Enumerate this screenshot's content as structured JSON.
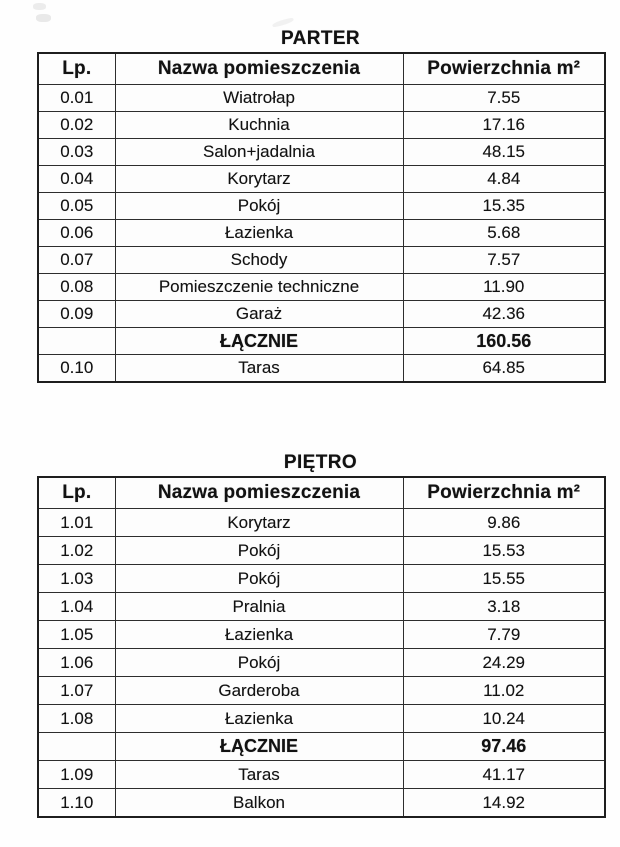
{
  "colors": {
    "text": "#121212",
    "border": "#2d2d2d",
    "background": "#fefefe"
  },
  "sections": [
    {
      "title": "PARTER",
      "columns": [
        "Lp.",
        "Nazwa pomieszczenia",
        "Powierzchnia m²"
      ],
      "rows": [
        {
          "lp": "0.01",
          "name": "Wiatrołap",
          "area": "7.55"
        },
        {
          "lp": "0.02",
          "name": "Kuchnia",
          "area": "17.16"
        },
        {
          "lp": "0.03",
          "name": "Salon+jadalnia",
          "area": "48.15"
        },
        {
          "lp": "0.04",
          "name": "Korytarz",
          "area": "4.84"
        },
        {
          "lp": "0.05",
          "name": "Pokój",
          "area": "15.35"
        },
        {
          "lp": "0.06",
          "name": "Łazienka",
          "area": "5.68"
        },
        {
          "lp": "0.07",
          "name": "Schody",
          "area": "7.57"
        },
        {
          "lp": "0.08",
          "name": "Pomieszczenie techniczne",
          "area": "11.90"
        },
        {
          "lp": "0.09",
          "name": "Garaż",
          "area": "42.36"
        },
        {
          "lp": "",
          "name": "ŁĄCZNIE",
          "area": "160.56",
          "bold": true
        },
        {
          "lp": "0.10",
          "name": "Taras",
          "area": "64.85"
        }
      ]
    },
    {
      "title": "PIĘTRO",
      "columns": [
        "Lp.",
        "Nazwa pomieszczenia",
        "Powierzchnia m²"
      ],
      "rows": [
        {
          "lp": "1.01",
          "name": "Korytarz",
          "area": "9.86"
        },
        {
          "lp": "1.02",
          "name": "Pokój",
          "area": "15.53"
        },
        {
          "lp": "1.03",
          "name": "Pokój",
          "area": "15.55"
        },
        {
          "lp": "1.04",
          "name": "Pralnia",
          "area": "3.18"
        },
        {
          "lp": "1.05",
          "name": "Łazienka",
          "area": "7.79"
        },
        {
          "lp": "1.06",
          "name": "Pokój",
          "area": "24.29"
        },
        {
          "lp": "1.07",
          "name": "Garderoba",
          "area": "11.02"
        },
        {
          "lp": "1.08",
          "name": "Łazienka",
          "area": "10.24"
        },
        {
          "lp": "",
          "name": "ŁĄCZNIE",
          "area": "97.46",
          "bold": true
        },
        {
          "lp": "1.09",
          "name": "Taras",
          "area": "41.17"
        },
        {
          "lp": "1.10",
          "name": "Balkon",
          "area": "14.92"
        }
      ]
    }
  ]
}
